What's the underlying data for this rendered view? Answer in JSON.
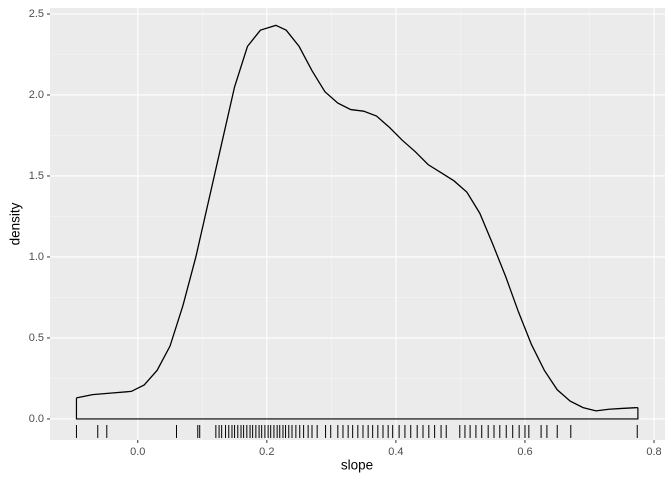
{
  "chart_data": {
    "type": "density",
    "x_label": "slope",
    "y_label": "density",
    "x": [
      -0.095,
      -0.07,
      -0.04,
      -0.01,
      0.01,
      0.03,
      0.05,
      0.07,
      0.09,
      0.11,
      0.13,
      0.15,
      0.17,
      0.19,
      0.214,
      0.23,
      0.25,
      0.27,
      0.29,
      0.31,
      0.33,
      0.35,
      0.37,
      0.39,
      0.41,
      0.43,
      0.45,
      0.47,
      0.49,
      0.51,
      0.53,
      0.55,
      0.57,
      0.59,
      0.61,
      0.63,
      0.65,
      0.67,
      0.69,
      0.71,
      0.73,
      0.75,
      0.775
    ],
    "values": [
      0.13,
      0.15,
      0.16,
      0.17,
      0.21,
      0.3,
      0.45,
      0.7,
      1.0,
      1.35,
      1.7,
      2.05,
      2.3,
      2.4,
      2.43,
      2.4,
      2.3,
      2.15,
      2.02,
      1.95,
      1.91,
      1.9,
      1.87,
      1.8,
      1.72,
      1.65,
      1.57,
      1.52,
      1.47,
      1.4,
      1.27,
      1.08,
      0.88,
      0.66,
      0.46,
      0.3,
      0.18,
      0.11,
      0.07,
      0.05,
      0.06,
      0.065,
      0.07
    ],
    "rug": [
      -0.095,
      -0.062,
      -0.048,
      0.06,
      0.093,
      0.096,
      0.121,
      0.126,
      0.13,
      0.136,
      0.141,
      0.146,
      0.15,
      0.155,
      0.16,
      0.164,
      0.169,
      0.174,
      0.178,
      0.183,
      0.188,
      0.192,
      0.197,
      0.202,
      0.206,
      0.211,
      0.216,
      0.22,
      0.225,
      0.229,
      0.234,
      0.239,
      0.245,
      0.251,
      0.257,
      0.264,
      0.27,
      0.278,
      0.291,
      0.299,
      0.31,
      0.318,
      0.326,
      0.333,
      0.341,
      0.349,
      0.357,
      0.364,
      0.372,
      0.38,
      0.388,
      0.395,
      0.405,
      0.414,
      0.423,
      0.433,
      0.442,
      0.451,
      0.46,
      0.47,
      0.478,
      0.499,
      0.507,
      0.515,
      0.524,
      0.533,
      0.543,
      0.552,
      0.561,
      0.571,
      0.581,
      0.591,
      0.6,
      0.606,
      0.625,
      0.634,
      0.65,
      0.671,
      0.774
    ],
    "color": "#000000",
    "xlim": [
      -0.136,
      0.817
    ],
    "ylim": [
      -0.13,
      2.537
    ],
    "xticks": [
      {
        "value": 0,
        "label": "0.0"
      },
      0.2,
      0.4,
      0.6,
      {
        "value": 0.8,
        "label": "0.8"
      }
    ],
    "yticks": [
      {
        "value": 0,
        "label": "0.0"
      },
      0.5,
      {
        "value": 1,
        "label": "1.0"
      },
      1.5,
      {
        "value": 2,
        "label": "2.0"
      },
      2.5
    ],
    "grid": true
  }
}
